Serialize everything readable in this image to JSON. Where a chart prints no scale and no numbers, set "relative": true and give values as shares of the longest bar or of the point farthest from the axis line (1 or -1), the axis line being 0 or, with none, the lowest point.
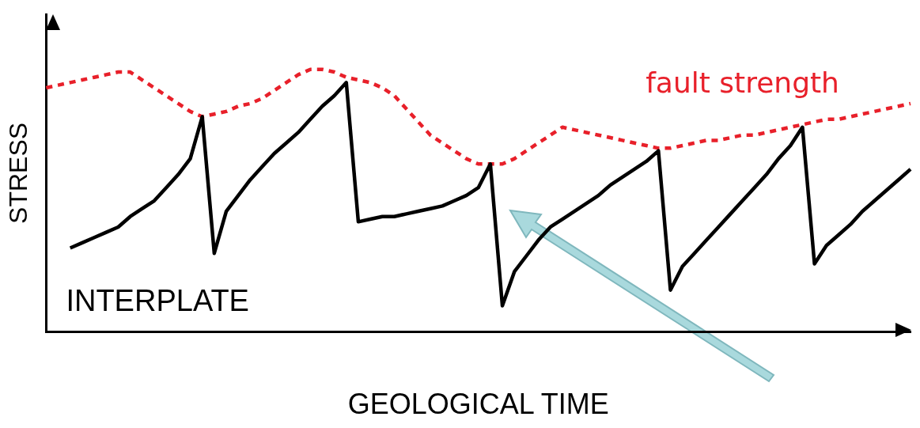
{
  "chart_data": {
    "type": "line",
    "relative": true,
    "xlabel": "GEOLOGICAL TIME",
    "ylabel": "STRESS",
    "annotations": [
      "INTERPLATE"
    ],
    "tick_labels": false,
    "grid": false,
    "legend": false,
    "marker": "none",
    "categories": [
      null,
      null,
      null,
      null,
      null,
      null,
      null,
      null,
      null,
      null,
      null,
      null,
      null,
      null,
      null,
      null,
      null,
      null,
      null,
      null,
      null,
      null,
      null,
      null,
      null,
      null,
      null,
      null,
      null,
      null,
      null,
      null,
      null,
      null,
      null,
      null,
      null,
      null,
      null,
      null,
      null,
      null,
      null,
      null,
      null,
      null,
      null,
      null,
      null,
      null,
      null,
      null,
      null,
      null,
      null,
      null,
      null,
      null,
      null,
      null,
      null,
      null,
      null,
      null,
      null,
      null,
      null,
      null,
      null,
      null,
      null,
      null,
      null
    ],
    "series": [
      {
        "color": "#000000",
        "line_style": "solid",
        "values": [
          null,
          null,
          0.32,
          0.34,
          0.36,
          0.38,
          0.4,
          0.44,
          0.47,
          0.5,
          0.55,
          0.6,
          0.66,
          0.82,
          0.3,
          0.46,
          0.52,
          0.58,
          0.63,
          0.68,
          0.72,
          0.76,
          0.81,
          0.86,
          0.9,
          0.95,
          0.42,
          0.43,
          0.44,
          0.44,
          0.45,
          0.46,
          0.47,
          0.48,
          0.5,
          0.52,
          0.55,
          0.64,
          0.1,
          0.23,
          0.29,
          0.35,
          0.4,
          0.43,
          0.46,
          0.49,
          0.52,
          0.56,
          0.59,
          0.62,
          0.65,
          0.69,
          0.16,
          0.25,
          0.3,
          0.35,
          0.4,
          0.45,
          0.5,
          0.55,
          0.6,
          0.66,
          0.71,
          0.78,
          0.26,
          0.33,
          0.37,
          0.41,
          0.46,
          0.5,
          0.54,
          0.58,
          0.62
        ]
      },
      {
        "name": "fault strength",
        "color": "#e8202a",
        "line_style": "dashed",
        "values": [
          0.93,
          0.94,
          0.95,
          0.96,
          0.97,
          0.98,
          0.99,
          0.99,
          0.96,
          0.93,
          0.9,
          0.87,
          0.84,
          0.82,
          0.83,
          0.84,
          0.86,
          0.87,
          0.89,
          0.92,
          0.95,
          0.98,
          1.0,
          1.0,
          0.99,
          0.97,
          0.96,
          0.95,
          0.93,
          0.9,
          0.85,
          0.8,
          0.75,
          0.72,
          0.69,
          0.66,
          0.64,
          0.64,
          0.64,
          0.66,
          0.69,
          0.72,
          0.75,
          0.78,
          0.77,
          0.76,
          0.75,
          0.74,
          0.73,
          0.72,
          0.71,
          0.7,
          0.7,
          0.71,
          0.72,
          0.73,
          0.73,
          0.74,
          0.75,
          0.75,
          0.76,
          0.77,
          0.78,
          0.79,
          0.8,
          0.81,
          0.81,
          0.82,
          0.83,
          0.84,
          0.85,
          0.86,
          0.87
        ]
      }
    ]
  }
}
